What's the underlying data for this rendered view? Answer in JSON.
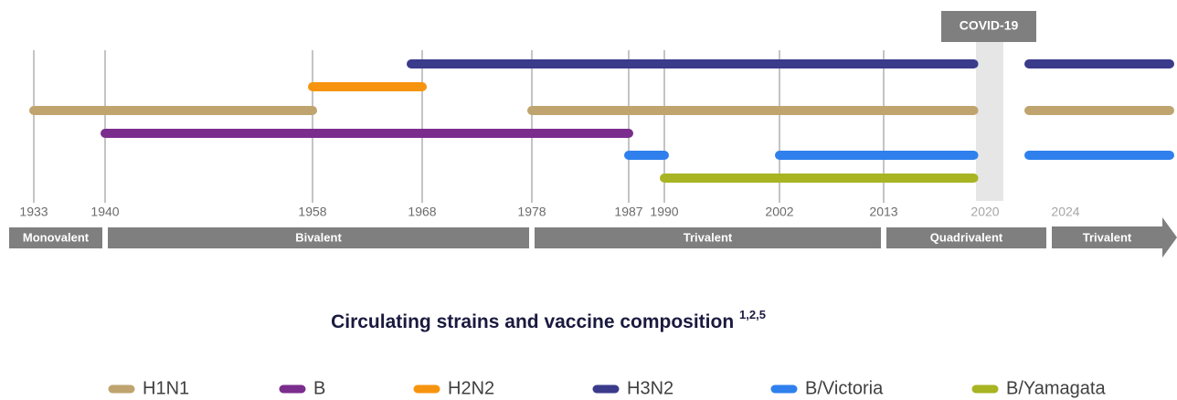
{
  "chart_data": {
    "type": "timeline",
    "title": "Circulating strains and vaccine composition",
    "title_superscript": "1,2,5",
    "annotation": "COVID-19",
    "xticks": [
      1933,
      1940,
      1958,
      1968,
      1978,
      1987,
      1990,
      2002,
      2013,
      2020,
      2024
    ],
    "series": [
      {
        "name": "H1N1",
        "color": "#bfa46f",
        "spans": [
          [
            1933,
            1958
          ],
          [
            1978,
            2019
          ],
          [
            2022,
            2029
          ]
        ]
      },
      {
        "name": "B",
        "color": "#7b2d8e",
        "spans": [
          [
            1940,
            1987
          ]
        ]
      },
      {
        "name": "H2N2",
        "color": "#f7940f",
        "spans": [
          [
            1958,
            1968
          ]
        ]
      },
      {
        "name": "H3N2",
        "color": "#3b3b8c",
        "spans": [
          [
            1967,
            2019
          ],
          [
            2022,
            2029
          ]
        ]
      },
      {
        "name": "B/Victoria",
        "color": "#2f80ed",
        "spans": [
          [
            1987,
            1990
          ],
          [
            2002,
            2019
          ],
          [
            2022,
            2029
          ]
        ]
      },
      {
        "name": "B/Yamagata",
        "color": "#a8b422",
        "spans": [
          [
            1990,
            2019
          ]
        ]
      }
    ],
    "vaccine_bands": [
      {
        "label": "Monovalent",
        "start": 1933,
        "end": 1940
      },
      {
        "label": "Bivalent",
        "start": 1940,
        "end": 1978
      },
      {
        "label": "Trivalent",
        "start": 1978,
        "end": 2013
      },
      {
        "label": "Quadrivalent",
        "start": 2013,
        "end": 2023
      },
      {
        "label": "Trivalent",
        "start": 2023,
        "end": 2029
      }
    ]
  }
}
